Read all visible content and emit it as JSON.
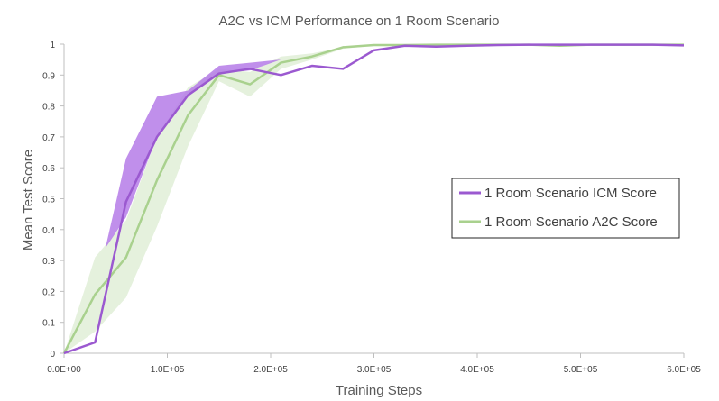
{
  "chart_data": {
    "type": "line",
    "title": "A2C vs ICM Performance on 1 Room Scenario",
    "xlabel": "Training Steps",
    "ylabel": "Mean Test Score",
    "xlim": [
      0,
      600000
    ],
    "ylim": [
      0,
      1
    ],
    "x_ticks": [
      0,
      100000,
      200000,
      300000,
      400000,
      500000,
      600000
    ],
    "x_tick_labels": [
      "0.0E+00",
      "1.0E+05",
      "2.0E+05",
      "3.0E+05",
      "4.0E+05",
      "5.0E+05",
      "6.0E+05"
    ],
    "y_ticks": [
      0,
      0.1,
      0.2,
      0.3,
      0.4,
      0.5,
      0.6,
      0.7,
      0.8,
      0.9,
      1
    ],
    "y_tick_labels": [
      "0",
      "0.1",
      "0.2",
      "0.3",
      "0.4",
      "0.5",
      "0.6",
      "0.7",
      "0.8",
      "0.9",
      "1"
    ],
    "grid": false,
    "legend_position": "right",
    "series": [
      {
        "name": "1 Room Scenario ICM Score",
        "color": "#9b59d0",
        "band_color": "#b57be8",
        "x": [
          0,
          30000,
          60000,
          90000,
          120000,
          150000,
          180000,
          210000,
          240000,
          270000,
          300000,
          330000,
          360000,
          390000,
          420000,
          450000,
          480000,
          510000,
          540000,
          570000,
          600000
        ],
        "values": [
          0.0,
          0.035,
          0.49,
          0.7,
          0.835,
          0.905,
          0.92,
          0.9,
          0.93,
          0.92,
          0.98,
          0.995,
          0.992,
          0.995,
          0.997,
          0.998,
          0.998,
          0.998,
          0.998,
          0.998,
          0.996
        ],
        "band": {
          "x": [
            40000,
            60000,
            90000,
            120000,
            150000,
            180000,
            210000
          ],
          "upper": [
            0.34,
            0.63,
            0.83,
            0.85,
            0.93,
            0.94,
            0.95
          ],
          "lower": [
            0.34,
            0.44,
            0.7,
            0.835,
            0.905,
            0.915,
            0.95
          ]
        }
      },
      {
        "name": "1 Room Scenario A2C Score",
        "color": "#a9d18e",
        "band_color": "#e2efd9",
        "x": [
          0,
          30000,
          60000,
          90000,
          120000,
          150000,
          180000,
          210000,
          240000,
          270000,
          300000,
          330000,
          360000,
          390000,
          420000,
          450000,
          480000,
          510000,
          540000,
          570000,
          600000
        ],
        "values": [
          0.0,
          0.19,
          0.31,
          0.56,
          0.77,
          0.9,
          0.87,
          0.94,
          0.96,
          0.99,
          0.997,
          0.997,
          0.998,
          0.998,
          0.998,
          0.998,
          0.995,
          0.998,
          0.998,
          0.998,
          0.998
        ],
        "band": {
          "x": [
            0,
            30000,
            60000,
            90000,
            120000,
            150000,
            180000,
            210000,
            240000,
            270000,
            300000
          ],
          "upper": [
            0.0,
            0.31,
            0.43,
            0.7,
            0.86,
            0.92,
            0.91,
            0.96,
            0.97,
            0.99,
            0.998
          ],
          "lower": [
            0.0,
            0.07,
            0.18,
            0.41,
            0.67,
            0.88,
            0.83,
            0.92,
            0.95,
            0.985,
            0.995
          ]
        }
      }
    ]
  }
}
